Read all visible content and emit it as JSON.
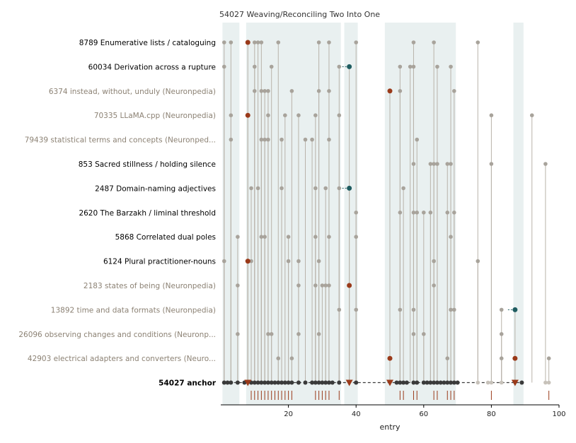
{
  "chart_data": {
    "type": "scatter",
    "title": "54027  Weaving/Reconciling Two Into One",
    "xlabel": "entry",
    "ylabel": "",
    "xlim": [
      0,
      100
    ],
    "xticks": [
      20,
      40,
      60,
      80,
      100
    ],
    "colors": {
      "band": "#e9f0f0",
      "stem": "#b9b3aa",
      "point": "#a8a39b",
      "highlight": "#9a3a1a",
      "teal": "#1f5c60",
      "anchor": "#3a3a3a",
      "anchor_label": "#000000",
      "muted_label": "#8c8274"
    },
    "bands": [
      [
        0.5,
        5.5
      ],
      [
        7.5,
        35.5
      ],
      [
        36.5,
        40.5
      ],
      [
        48.5,
        69.5
      ],
      [
        86.5,
        89.5
      ]
    ],
    "rows": [
      {
        "label": "8789  Enumerative lists / cataloguing",
        "bold": true,
        "points": [
          1,
          3,
          10,
          11,
          12,
          17,
          29,
          32,
          40,
          57,
          63,
          76
        ],
        "highlight": [
          8
        ],
        "teal": []
      },
      {
        "label": "60034  Derivation across a rupture",
        "bold": true,
        "points": [
          1,
          10,
          15,
          35,
          53,
          56,
          57,
          64,
          68
        ],
        "highlight": [],
        "teal": [
          38
        ]
      },
      {
        "label": "6374  instead, without, unduly (Neuronpedia)",
        "bold": false,
        "points": [
          10,
          12,
          13,
          14,
          21,
          29,
          32,
          53,
          69
        ],
        "highlight": [
          50
        ],
        "teal": []
      },
      {
        "label": "70335  LLaMA.cpp (Neuronpedia)",
        "bold": false,
        "points": [
          3,
          14,
          19,
          23,
          28,
          35,
          80,
          92
        ],
        "highlight": [
          8
        ],
        "teal": []
      },
      {
        "label": "79439  statistical terms and concepts (Neuronped...",
        "bold": false,
        "points": [
          3,
          12,
          13,
          14,
          18,
          25,
          27,
          32,
          58
        ],
        "highlight": [],
        "teal": []
      },
      {
        "label": "853  Sacred stillness / holding silence",
        "bold": true,
        "points": [
          57,
          62,
          63,
          64,
          67,
          68,
          80,
          96
        ],
        "highlight": [],
        "teal": []
      },
      {
        "label": "2487  Domain-naming adjectives",
        "bold": true,
        "points": [
          9,
          11,
          18,
          28,
          31,
          35,
          54
        ],
        "highlight": [],
        "teal": [
          38
        ]
      },
      {
        "label": "2620  The Barzakh / liminal threshold",
        "bold": true,
        "points": [
          40,
          53,
          57,
          58,
          60,
          62,
          67,
          69
        ],
        "highlight": [],
        "teal": []
      },
      {
        "label": "5868  Correlated dual poles",
        "bold": true,
        "points": [
          5,
          12,
          13,
          20,
          28,
          32,
          40,
          68
        ],
        "highlight": [],
        "teal": []
      },
      {
        "label": "6124  Plural practitioner-nouns",
        "bold": true,
        "points": [
          1,
          9,
          20,
          23,
          29,
          63,
          76
        ],
        "highlight": [
          8
        ],
        "teal": []
      },
      {
        "label": "2183  states of being (Neuronpedia)",
        "bold": false,
        "points": [
          5,
          23,
          28,
          30,
          31,
          32,
          63
        ],
        "highlight": [
          38
        ],
        "teal": []
      },
      {
        "label": "13892  time and data formats (Neuronpedia)",
        "bold": false,
        "points": [
          35,
          40,
          53,
          57,
          68,
          69,
          83
        ],
        "highlight": [],
        "teal": [
          87
        ]
      },
      {
        "label": "26096  observing changes and conditions (Neuronp...",
        "bold": false,
        "points": [
          5,
          14,
          15,
          23,
          29,
          57,
          60,
          83
        ],
        "highlight": [],
        "teal": []
      },
      {
        "label": "42903  electrical adapters and converters (Neuro...",
        "bold": false,
        "points": [
          17,
          21,
          67,
          83,
          97
        ],
        "highlight": [
          50,
          87
        ],
        "teal": []
      }
    ],
    "anchor": {
      "label": "54027  anchor",
      "points": [
        1,
        2,
        3,
        5,
        7,
        9,
        10,
        11,
        12,
        13,
        14,
        15,
        16,
        17,
        18,
        19,
        20,
        21,
        23,
        25,
        27,
        28,
        29,
        30,
        31,
        32,
        33,
        35,
        40,
        52,
        53,
        54,
        55,
        57,
        58,
        60,
        61,
        62,
        63,
        64,
        65,
        66,
        67,
        68,
        69,
        70,
        89
      ],
      "faded_points": [
        76,
        79,
        80,
        83,
        96,
        97
      ],
      "triangles": [
        8,
        38,
        50,
        87
      ],
      "rug": [
        9,
        10,
        11,
        12,
        13,
        14,
        15,
        16,
        17,
        18,
        19,
        20,
        21,
        28,
        29,
        30,
        31,
        32,
        35,
        53,
        54,
        57,
        58,
        63,
        64,
        67,
        68,
        69,
        80,
        97
      ]
    }
  }
}
